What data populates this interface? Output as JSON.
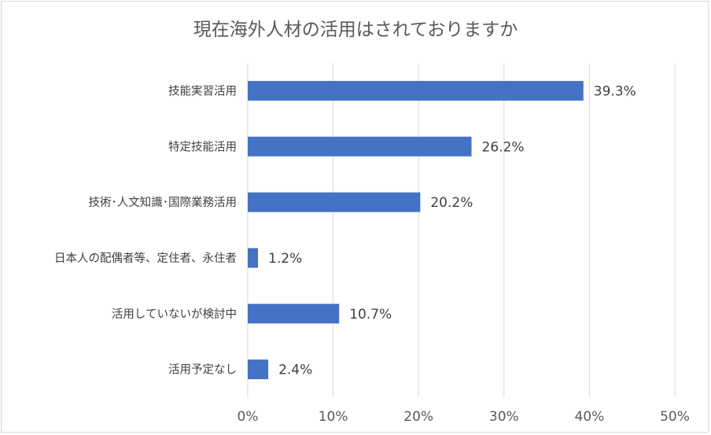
{
  "chart_data": {
    "type": "bar",
    "orientation": "horizontal",
    "title": "現在海外人材の活用はされておりますか",
    "categories": [
      "技能実習活用",
      "特定技能活用",
      "技術･人文知識･国際業務活用",
      "日本人の配偶者等、定住者、永住者",
      "活用していないが検討中",
      "活用予定なし"
    ],
    "values": [
      39.3,
      26.2,
      20.2,
      1.2,
      10.7,
      2.4
    ],
    "data_labels": [
      "39.3%",
      "26.2%",
      "20.2%",
      "1.2%",
      "10.7%",
      "2.4%"
    ],
    "xlim": [
      0,
      50
    ],
    "x_ticks": [
      0,
      10,
      20,
      30,
      40,
      50
    ],
    "x_tick_labels": [
      "0%",
      "10%",
      "20%",
      "30%",
      "40%",
      "50%"
    ],
    "grid": true,
    "legend": "none",
    "bar_color": "#4472C4",
    "grid_color": "#d9d9d9"
  }
}
